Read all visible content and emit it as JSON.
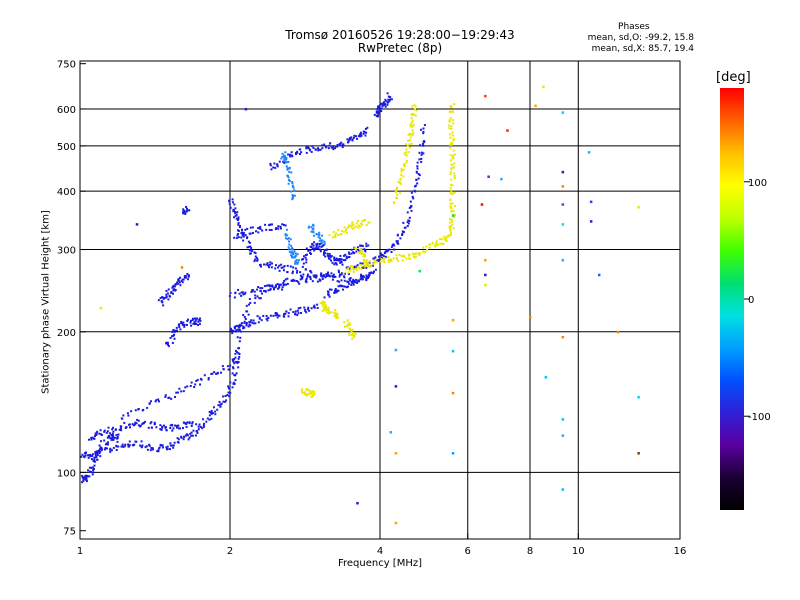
{
  "title_line1": "Tromsø 20160526 19:28:00−19:29:43",
  "title_line2": "RwPretec (8p)",
  "phases": {
    "heading": "Phases",
    "line_o": "mean, sd,O:  -99.2, 15.8",
    "line_x": "mean, sd,X:  85.7, 19.4"
  },
  "colorbar": {
    "unit_label": "[deg]",
    "ticks": [
      {
        "value": 100,
        "label": "100"
      },
      {
        "value": 0,
        "label": "0"
      },
      {
        "value": -100,
        "label": "-100"
      }
    ],
    "range": [
      -180,
      180
    ],
    "colors": [
      "#000000",
      "#1a0033",
      "#5a00a0",
      "#3020d8",
      "#0050ff",
      "#00a0ff",
      "#00e0e0",
      "#00e070",
      "#40ff00",
      "#c0ff00",
      "#ffff00",
      "#ffc000",
      "#ff6000",
      "#ff0000"
    ]
  },
  "chart_data": {
    "type": "scatter",
    "xlabel": "Frequency [MHz]",
    "ylabel": "Stationary phase Virtual Height [km]",
    "xscale": "log",
    "yscale": "log",
    "xlim": [
      1,
      16
    ],
    "ylim": [
      72,
      760
    ],
    "x_ticks": [
      {
        "value": 1,
        "label": "1"
      },
      {
        "value": 2,
        "label": "2"
      },
      {
        "value": 4,
        "label": "4"
      },
      {
        "value": 6,
        "label": "6"
      },
      {
        "value": 8,
        "label": "8"
      },
      {
        "value": 10,
        "label": "10"
      },
      {
        "value": 16,
        "label": "16"
      }
    ],
    "x_grid": [
      2,
      4,
      6,
      8,
      10
    ],
    "y_ticks": [
      {
        "value": 75,
        "label": "75"
      },
      {
        "value": 100,
        "label": "100"
      },
      {
        "value": 200,
        "label": "200"
      },
      {
        "value": 300,
        "label": "300"
      },
      {
        "value": 400,
        "label": "400"
      },
      {
        "value": 500,
        "label": "500"
      },
      {
        "value": 600,
        "label": "600"
      },
      {
        "value": 750,
        "label": "750"
      }
    ],
    "y_grid": [
      100,
      200,
      300,
      400,
      500,
      600
    ],
    "grid": true,
    "series": [
      {
        "color": "#1a1ae0",
        "phase": -100,
        "traces": [
          [
            [
              1.0,
              110
            ],
            [
              1.05,
              108
            ],
            [
              1.1,
              110
            ],
            [
              1.2,
              114
            ],
            [
              1.3,
              116
            ],
            [
              1.4,
              112
            ],
            [
              1.5,
              113
            ],
            [
              1.6,
              118
            ],
            [
              1.7,
              122
            ],
            [
              1.8,
              130
            ],
            [
              1.9,
              138
            ],
            [
              2.0,
              150
            ],
            [
              2.05,
              165
            ],
            [
              2.1,
              200
            ],
            [
              2.2,
              230
            ],
            [
              2.4,
              250
            ],
            [
              2.6,
              255
            ],
            [
              2.8,
              258
            ],
            [
              3.0,
              260
            ],
            [
              3.2,
              265
            ],
            [
              3.5,
              272
            ],
            [
              3.8,
              280
            ],
            [
              4.0,
              290
            ],
            [
              4.2,
              300
            ],
            [
              4.4,
              320
            ],
            [
              4.6,
              360
            ],
            [
              4.75,
              420
            ],
            [
              4.85,
              480
            ],
            [
              4.9,
              550
            ]
          ],
          [
            [
              1.0,
              98
            ],
            [
              1.02,
              96
            ],
            [
              1.05,
              100
            ],
            [
              1.08,
              108
            ],
            [
              1.12,
              116
            ],
            [
              1.16,
              120
            ],
            [
              1.2,
              118
            ]
          ],
          [
            [
              1.05,
              118
            ],
            [
              1.1,
              122
            ],
            [
              1.2,
              124
            ],
            [
              1.3,
              128
            ],
            [
              1.4,
              126
            ],
            [
              1.5,
              124
            ],
            [
              1.6,
              126
            ],
            [
              1.7,
              128
            ]
          ],
          [
            [
              1.5,
              185
            ],
            [
              1.55,
              200
            ],
            [
              1.6,
              208
            ],
            [
              1.7,
              210
            ],
            [
              1.75,
              210
            ]
          ],
          [
            [
              1.45,
              230
            ],
            [
              1.5,
              240
            ],
            [
              1.55,
              250
            ],
            [
              1.6,
              258
            ],
            [
              1.65,
              262
            ]
          ],
          [
            [
              1.6,
              360
            ],
            [
              1.65,
              368
            ]
          ],
          [
            [
              2.0,
              200
            ],
            [
              2.1,
              205
            ],
            [
              2.2,
              210
            ],
            [
              2.4,
              215
            ],
            [
              2.6,
              218
            ],
            [
              2.8,
              222
            ],
            [
              3.0,
              225
            ]
          ],
          [
            [
              2.0,
              380
            ],
            [
              2.05,
              360
            ],
            [
              2.1,
              330
            ],
            [
              2.2,
              300
            ],
            [
              2.3,
              280
            ],
            [
              2.5,
              275
            ],
            [
              2.7,
              270
            ],
            [
              3.0,
              265
            ],
            [
              3.3,
              260
            ],
            [
              3.6,
              258
            ],
            [
              3.8,
              262
            ]
          ],
          [
            [
              2.4,
              450
            ],
            [
              2.6,
              470
            ],
            [
              2.8,
              490
            ],
            [
              3.0,
              495
            ],
            [
              3.2,
              500
            ],
            [
              3.4,
              505
            ],
            [
              3.6,
              520
            ],
            [
              3.8,
              545
            ]
          ],
          [
            [
              3.9,
              580
            ],
            [
              4.0,
              600
            ],
            [
              4.1,
              620
            ],
            [
              4.2,
              640
            ]
          ],
          [
            [
              2.8,
              280
            ],
            [
              2.9,
              300
            ],
            [
              3.0,
              310
            ],
            [
              3.1,
              298
            ],
            [
              3.2,
              285
            ],
            [
              3.3,
              280
            ],
            [
              3.4,
              290
            ],
            [
              3.6,
              300
            ],
            [
              3.8,
              305
            ]
          ],
          [
            [
              3.1,
              240
            ],
            [
              3.3,
              248
            ],
            [
              3.5,
              255
            ],
            [
              3.7,
              262
            ],
            [
              3.9,
              270
            ]
          ],
          [
            [
              1.2,
              130
            ],
            [
              1.4,
              140
            ],
            [
              1.6,
              150
            ],
            [
              1.8,
              160
            ],
            [
              2.0,
              170
            ],
            [
              2.1,
              180
            ]
          ],
          [
            [
              2.0,
              240
            ],
            [
              2.2,
              245
            ],
            [
              2.4,
              248
            ],
            [
              2.6,
              250
            ]
          ],
          [
            [
              2.05,
              320
            ],
            [
              2.2,
              330
            ],
            [
              2.4,
              335
            ],
            [
              2.6,
              340
            ]
          ]
        ]
      },
      {
        "color": "#e8e800",
        "phase": 100,
        "traces": [
          [
            [
              3.4,
              270
            ],
            [
              3.6,
              275
            ],
            [
              3.9,
              280
            ],
            [
              4.2,
              285
            ],
            [
              4.5,
              290
            ],
            [
              4.8,
              295
            ],
            [
              5.1,
              305
            ],
            [
              5.4,
              315
            ],
            [
              5.55,
              330
            ],
            [
              5.6,
              360
            ],
            [
              5.6,
              400
            ],
            [
              5.6,
              450
            ],
            [
              5.58,
              500
            ],
            [
              5.55,
              560
            ],
            [
              5.6,
              620
            ]
          ],
          [
            [
              4.3,
              380
            ],
            [
              4.4,
              420
            ],
            [
              4.5,
              470
            ],
            [
              4.6,
              520
            ],
            [
              4.65,
              560
            ],
            [
              4.7,
              620
            ]
          ],
          [
            [
              3.2,
              320
            ],
            [
              3.4,
              330
            ],
            [
              3.6,
              340
            ],
            [
              3.8,
              345
            ]
          ],
          [
            [
              3.05,
              230
            ],
            [
              3.1,
              225
            ],
            [
              3.2,
              220
            ],
            [
              3.3,
              215
            ]
          ],
          [
            [
              2.8,
              150
            ],
            [
              2.9,
              148
            ],
            [
              2.95,
              147
            ]
          ],
          [
            [
              3.4,
              210
            ],
            [
              3.5,
              200
            ],
            [
              3.55,
              195
            ]
          ],
          [
            [
              3.6,
              300
            ],
            [
              3.7,
              290
            ],
            [
              3.8,
              275
            ]
          ]
        ]
      },
      {
        "color": "#1e88ff",
        "phase": -60,
        "traces": [
          [
            [
              2.6,
              330
            ],
            [
              2.65,
              300
            ],
            [
              2.7,
              290
            ],
            [
              2.75,
              280
            ]
          ],
          [
            [
              2.55,
              480
            ],
            [
              2.6,
              460
            ],
            [
              2.65,
              420
            ],
            [
              2.7,
              380
            ]
          ],
          [
            [
              2.9,
              340
            ],
            [
              3.0,
              320
            ],
            [
              3.1,
              310
            ]
          ]
        ]
      }
    ],
    "points": [
      {
        "x": 6.5,
        "y": 640,
        "color": "#ff4000"
      },
      {
        "x": 7.2,
        "y": 540,
        "color": "#ff2020"
      },
      {
        "x": 6.4,
        "y": 375,
        "color": "#ff0000"
      },
      {
        "x": 6.6,
        "y": 430,
        "color": "#8020c0"
      },
      {
        "x": 6.5,
        "y": 265,
        "color": "#2020c0"
      },
      {
        "x": 6.5,
        "y": 285,
        "color": "#ffa000"
      },
      {
        "x": 7.0,
        "y": 425,
        "color": "#40a0ff"
      },
      {
        "x": 8.5,
        "y": 670,
        "color": "#ffe000"
      },
      {
        "x": 9.3,
        "y": 590,
        "color": "#00d0ff"
      },
      {
        "x": 9.3,
        "y": 440,
        "color": "#2020c0"
      },
      {
        "x": 9.3,
        "y": 410,
        "color": "#ff8000"
      },
      {
        "x": 9.3,
        "y": 375,
        "color": "#3050ff"
      },
      {
        "x": 9.3,
        "y": 340,
        "color": "#00e0e0"
      },
      {
        "x": 9.3,
        "y": 285,
        "color": "#40a0ff"
      },
      {
        "x": 9.3,
        "y": 195,
        "color": "#ff8000"
      },
      {
        "x": 8.0,
        "y": 215,
        "color": "#ff8000"
      },
      {
        "x": 8.2,
        "y": 610,
        "color": "#ffa000"
      },
      {
        "x": 10.5,
        "y": 485,
        "color": "#00c0ff"
      },
      {
        "x": 10.6,
        "y": 380,
        "color": "#2040ff"
      },
      {
        "x": 10.6,
        "y": 345,
        "color": "#2020c0"
      },
      {
        "x": 11.0,
        "y": 265,
        "color": "#3050ff"
      },
      {
        "x": 13.2,
        "y": 370,
        "color": "#c0ff00"
      },
      {
        "x": 12.0,
        "y": 200,
        "color": "#ff8000"
      },
      {
        "x": 13.2,
        "y": 145,
        "color": "#00d0ff"
      },
      {
        "x": 13.2,
        "y": 110,
        "color": "#804000"
      },
      {
        "x": 9.3,
        "y": 120,
        "color": "#40a0ff"
      },
      {
        "x": 9.3,
        "y": 92,
        "color": "#00c0ff"
      },
      {
        "x": 8.6,
        "y": 160,
        "color": "#00c0ff"
      },
      {
        "x": 9.3,
        "y": 130,
        "color": "#00c0ff"
      },
      {
        "x": 5.6,
        "y": 182,
        "color": "#00c0ff"
      },
      {
        "x": 5.6,
        "y": 148,
        "color": "#ff8000"
      },
      {
        "x": 5.6,
        "y": 110,
        "color": "#00a0ff"
      },
      {
        "x": 5.6,
        "y": 212,
        "color": "#ffa000"
      },
      {
        "x": 4.8,
        "y": 270,
        "color": "#00e070"
      },
      {
        "x": 4.3,
        "y": 183,
        "color": "#40a0ff"
      },
      {
        "x": 4.3,
        "y": 153,
        "color": "#1a1ae0"
      },
      {
        "x": 4.3,
        "y": 110,
        "color": "#ffa000"
      },
      {
        "x": 4.3,
        "y": 78,
        "color": "#ffa000"
      },
      {
        "x": 3.6,
        "y": 86,
        "color": "#2020c0"
      },
      {
        "x": 4.2,
        "y": 122,
        "color": "#40a0ff"
      },
      {
        "x": 2.15,
        "y": 600,
        "color": "#2020c0"
      },
      {
        "x": 1.3,
        "y": 340,
        "color": "#2020c0"
      },
      {
        "x": 1.6,
        "y": 275,
        "color": "#ff8000"
      },
      {
        "x": 1.1,
        "y": 225,
        "color": "#c0ff00"
      },
      {
        "x": 6.5,
        "y": 252,
        "color": "#c0ff00"
      },
      {
        "x": 5.6,
        "y": 355,
        "color": "#00e070"
      }
    ]
  }
}
